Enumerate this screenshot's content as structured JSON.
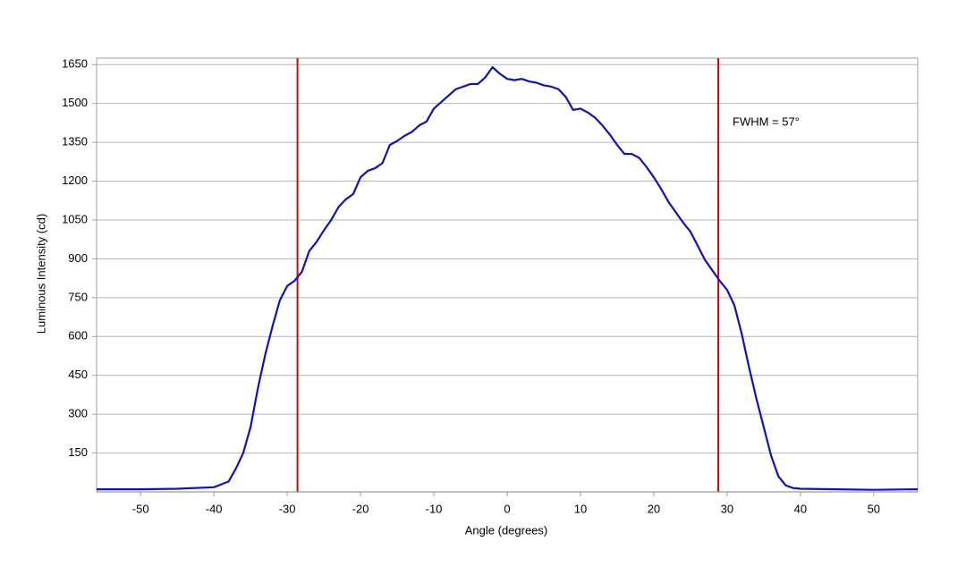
{
  "chart_data": {
    "type": "line",
    "x_label": "Angle (degrees)",
    "y_label": "Luminous Intensity (cd)",
    "annotation": "FWHM = 57°",
    "x": [
      -56,
      -50,
      -45,
      -40,
      -38,
      -37,
      -36,
      -35,
      -34,
      -33,
      -32,
      -31,
      -30,
      -29,
      -28,
      -27,
      -26,
      -25,
      -24,
      -23,
      -22,
      -21,
      -20,
      -19,
      -18,
      -17,
      -16,
      -15,
      -14,
      -13,
      -12,
      -11,
      -10,
      -9,
      -8,
      -7,
      -6,
      -5,
      -4,
      -3,
      -2,
      -1,
      0,
      1,
      2,
      3,
      4,
      5,
      6,
      7,
      8,
      9,
      10,
      11,
      12,
      13,
      14,
      15,
      16,
      17,
      18,
      19,
      20,
      21,
      22,
      23,
      24,
      25,
      26,
      27,
      28,
      29,
      30,
      31,
      32,
      33,
      34,
      35,
      36,
      37,
      38,
      39,
      40,
      45,
      50,
      56
    ],
    "series": [
      {
        "name": "Luminous Intensity",
        "color": "#1010cc",
        "values": [
          10,
          10,
          12,
          18,
          40,
          90,
          150,
          250,
          400,
          530,
          640,
          740,
          795,
          815,
          850,
          930,
          965,
          1010,
          1050,
          1100,
          1130,
          1150,
          1215,
          1240,
          1250,
          1270,
          1340,
          1355,
          1375,
          1390,
          1415,
          1430,
          1480,
          1505,
          1530,
          1555,
          1565,
          1575,
          1575,
          1600,
          1640,
          1615,
          1595,
          1590,
          1595,
          1585,
          1580,
          1570,
          1565,
          1555,
          1525,
          1475,
          1480,
          1465,
          1445,
          1415,
          1380,
          1340,
          1305,
          1305,
          1290,
          1255,
          1215,
          1170,
          1120,
          1080,
          1040,
          1005,
          950,
          895,
          855,
          815,
          780,
          720,
          610,
          480,
          360,
          250,
          140,
          60,
          25,
          15,
          12,
          10,
          8,
          10
        ]
      }
    ],
    "vlines": [
      -28.6,
      28.8
    ],
    "vline_color": "#e00000",
    "xlim": [
      -56,
      56
    ],
    "ylim": [
      0,
      1675
    ],
    "xticks": [
      -50,
      -40,
      -30,
      -20,
      -10,
      0,
      10,
      20,
      30,
      40,
      50
    ],
    "yticks": [
      150,
      300,
      450,
      600,
      750,
      900,
      1050,
      1200,
      1350,
      1500,
      1650
    ],
    "grid": true
  }
}
